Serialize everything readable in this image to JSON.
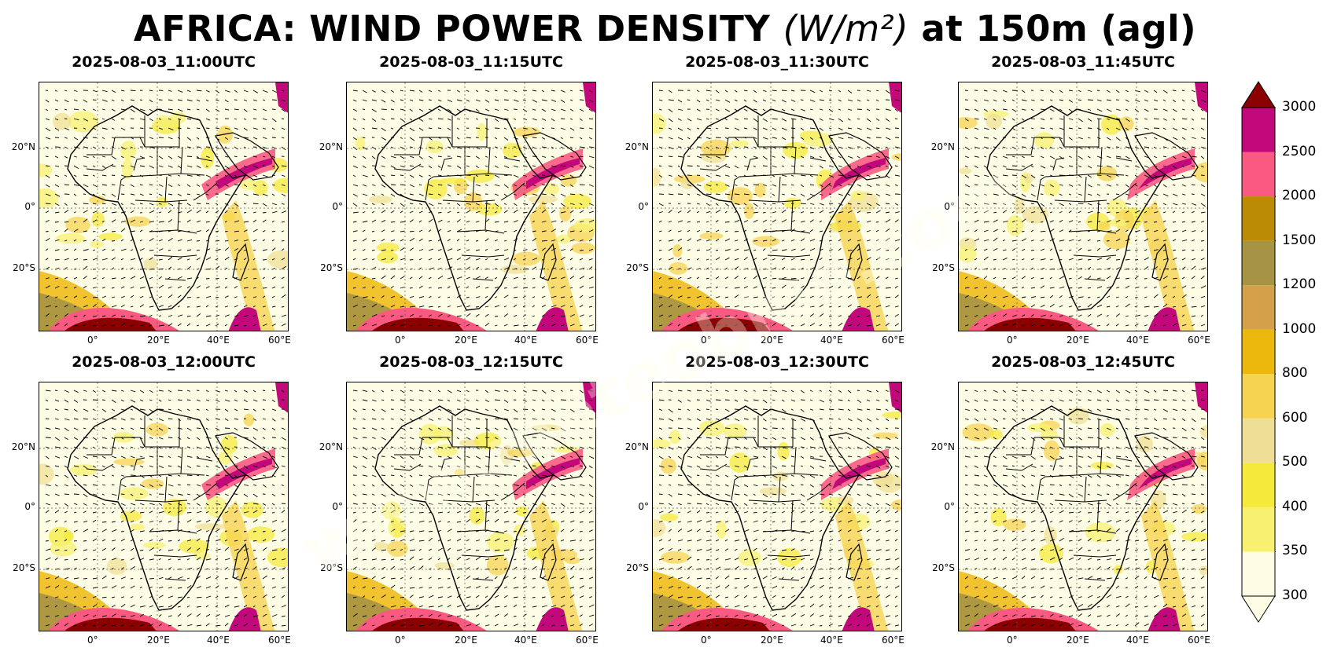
{
  "title": {
    "main": "AFRICA: WIND POWER DENSITY",
    "unit": "(W/m²)",
    "suffix": "at 150m (agl)"
  },
  "panels": [
    {
      "label": "2025-08-03_11:00UTC"
    },
    {
      "label": "2025-08-03_11:15UTC"
    },
    {
      "label": "2025-08-03_11:30UTC"
    },
    {
      "label": "2025-08-03_11:45UTC"
    },
    {
      "label": "2025-08-03_12:00UTC"
    },
    {
      "label": "2025-08-03_12:15UTC"
    },
    {
      "label": "2025-08-03_12:30UTC"
    },
    {
      "label": "2025-08-03_12:45UTC"
    }
  ],
  "axes": {
    "lon_ticks": [
      "0°",
      "20°E",
      "40°E",
      "60°E"
    ],
    "lat_ticks": [
      "20°N",
      "0°",
      "20°S"
    ]
  },
  "colorbar": {
    "levels": [
      "300",
      "350",
      "400",
      "500",
      "600",
      "800",
      "1000",
      "1200",
      "1500",
      "2000",
      "2500",
      "3000"
    ],
    "colors": [
      "#fdfde6",
      "#f7f070",
      "#f5ea3c",
      "#efdf96",
      "#f7d352",
      "#edb80e",
      "#d4a14a",
      "#a69444",
      "#bb8b06",
      "#fa5a82",
      "#c2087a",
      "#8b0000"
    ],
    "extend": "both"
  },
  "watermark": "www.meteoblue.com"
}
